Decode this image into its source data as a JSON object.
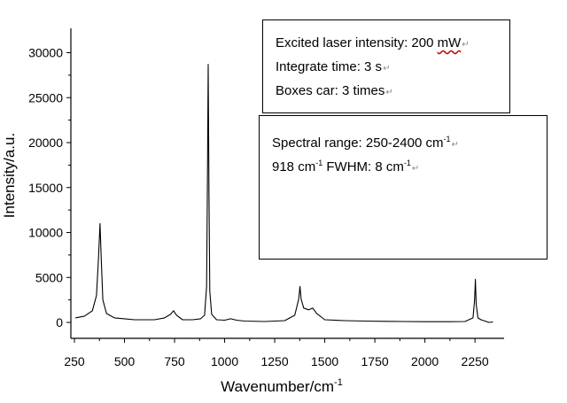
{
  "chart_data": {
    "type": "line",
    "xlabel": "Wavenumber/cm",
    "xlabel_sup": "-1",
    "ylabel": "Intensity/a.u.",
    "xlim": [
      250,
      2360
    ],
    "ylim": [
      -1000,
      32000
    ],
    "x_ticks": [
      250,
      500,
      750,
      1000,
      1250,
      1500,
      1750,
      2000,
      2250
    ],
    "y_ticks": [
      0,
      5000,
      10000,
      15000,
      20000,
      25000,
      30000
    ],
    "series": [
      {
        "color": "#000000",
        "x": [
          255,
          300,
          340,
          360,
          370,
          378,
          384,
          392,
          410,
          450,
          500,
          550,
          600,
          650,
          700,
          730,
          745,
          760,
          790,
          840,
          880,
          900,
          910,
          914,
          918,
          922,
          926,
          935,
          960,
          1000,
          1030,
          1060,
          1100,
          1200,
          1300,
          1350,
          1370,
          1376,
          1382,
          1395,
          1420,
          1440,
          1460,
          1500,
          1600,
          1700,
          1800,
          1900,
          2000,
          2100,
          2200,
          2240,
          2248,
          2252,
          2256,
          2265,
          2280,
          2300,
          2320,
          2340
        ],
        "y": [
          500,
          700,
          1300,
          3000,
          7000,
          11000,
          7000,
          2500,
          1000,
          500,
          400,
          300,
          300,
          300,
          500,
          900,
          1300,
          800,
          300,
          300,
          400,
          800,
          4000,
          15000,
          28700,
          14000,
          3500,
          900,
          300,
          250,
          400,
          250,
          150,
          100,
          200,
          800,
          2600,
          4000,
          2600,
          1600,
          1400,
          1600,
          1000,
          300,
          200,
          150,
          120,
          100,
          80,
          80,
          100,
          500,
          2500,
          4800,
          2000,
          500,
          300,
          150,
          0,
          50
        ]
      }
    ]
  },
  "annotations": {
    "box1": [
      {
        "text": "Excited laser intensity: 200 ",
        "tail": "mW"
      },
      {
        "text": "Integrate time: 3 s"
      },
      {
        "text": "Boxes car: 3 times"
      }
    ],
    "box2": {
      "line1": {
        "pre": "Spectral range: 250-2400 cm",
        "sup": "-1"
      },
      "line2": {
        "pre": "918 cm",
        "sup1": "-1",
        "mid": " FWHM: 8 cm",
        "sup2": "-1"
      }
    },
    "paragraph_mark": "↵"
  }
}
